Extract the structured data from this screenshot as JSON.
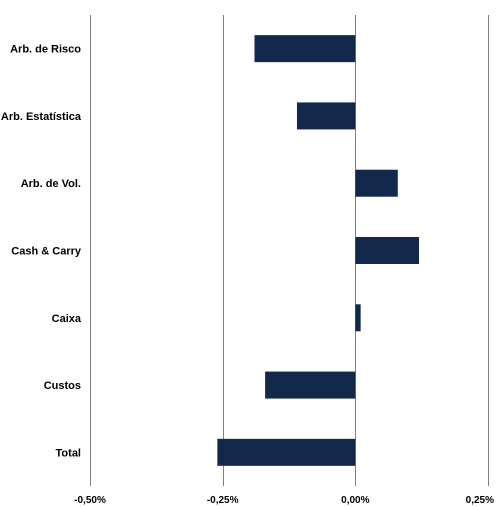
{
  "chart_data": {
    "type": "bar",
    "orientation": "horizontal",
    "categories": [
      "Arb. de Risco",
      "Arb. Estatística",
      "Arb. de Vol.",
      "Cash & Carry",
      "Caixa",
      "Custos",
      "Total"
    ],
    "values": [
      -0.19,
      -0.11,
      0.08,
      0.12,
      0.01,
      -0.17,
      -0.26
    ],
    "value_unit": "%",
    "xlim": [
      -0.5,
      0.25
    ],
    "x_ticks": [
      -0.5,
      -0.25,
      0.0,
      0.25
    ],
    "x_tick_labels": [
      "-0,50%",
      "-0,25%",
      "0,00%",
      "0,25%"
    ],
    "title": "",
    "xlabel": "",
    "ylabel": "",
    "grid": "vertical",
    "legend": "none",
    "colors": {
      "bar": "#13294b",
      "grid": "#808080",
      "text": "#000000"
    }
  }
}
